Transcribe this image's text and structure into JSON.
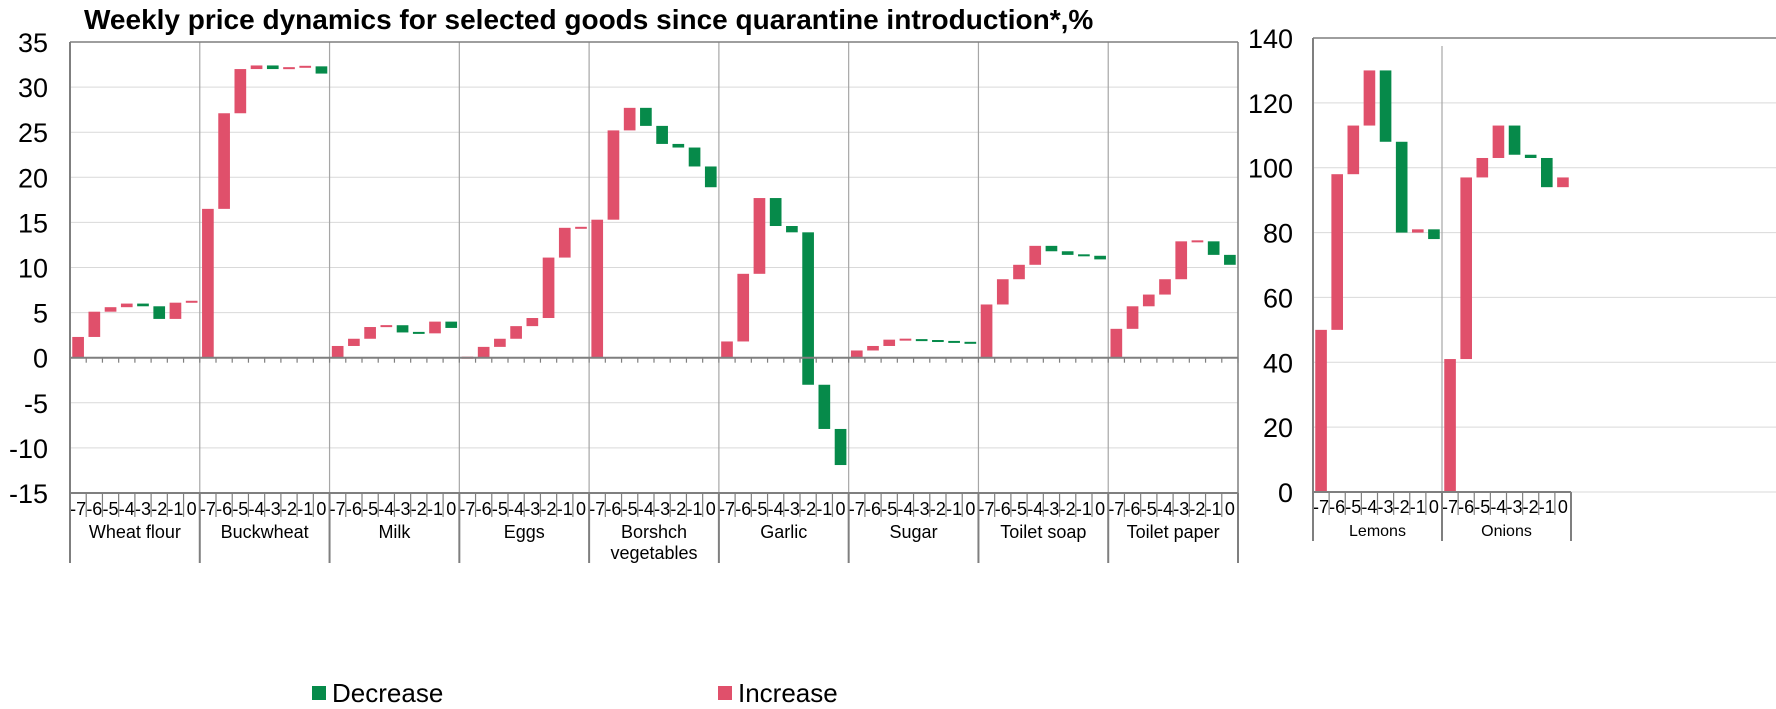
{
  "title": "Weekly price dynamics for selected goods since quarantine introduction*,%",
  "colors": {
    "decrease": "#068a4a",
    "increase": "#e0506b",
    "grid": "#d9d9d9",
    "axis": "#7f7f7f",
    "separator": "#a6a6a6"
  },
  "legend": [
    {
      "name": "Decrease",
      "color": "#068a4a"
    },
    {
      "name": "Increase",
      "color": "#e0506b"
    }
  ],
  "chart_data": [
    {
      "type": "bar",
      "subtype": "waterfall",
      "ylim": [
        -15,
        35
      ],
      "yticks": [
        "35",
        "30",
        "25",
        "20",
        "15",
        "10",
        "5",
        "0",
        "-5",
        "-10",
        "-15"
      ],
      "week_labels": [
        "-7",
        "-6",
        "-5",
        "-4",
        "-3",
        "-2",
        "-1",
        "0"
      ],
      "grid": true,
      "legend_position": "bottom",
      "groups": [
        {
          "name": "Wheat flour",
          "values": [
            2.3,
            5.1,
            5.6,
            6.0,
            5.7,
            4.3,
            6.1,
            6.3
          ]
        },
        {
          "name": "Buckwheat",
          "values": [
            16.5,
            27.1,
            32.0,
            32.4,
            32.0,
            32.2,
            32.3,
            31.5
          ]
        },
        {
          "name": "Milk",
          "values": [
            1.3,
            2.1,
            3.4,
            3.6,
            2.8,
            2.7,
            4.0,
            3.3
          ]
        },
        {
          "name": "Eggs",
          "values": [
            0.0,
            1.2,
            2.1,
            3.5,
            4.4,
            11.1,
            14.4,
            14.4
          ]
        },
        {
          "name": "Borshch vegetables",
          "values": [
            15.3,
            25.2,
            27.7,
            25.7,
            23.7,
            23.3,
            21.2,
            18.9
          ]
        },
        {
          "name": "Garlic",
          "values": [
            1.8,
            9.3,
            17.7,
            14.6,
            13.9,
            -3.0,
            -7.9,
            -11.9
          ]
        },
        {
          "name": "Sugar",
          "values": [
            0.8,
            1.3,
            2.0,
            2.0,
            1.9,
            1.8,
            1.7,
            1.6
          ]
        },
        {
          "name": "Toilet soap",
          "values": [
            5.9,
            8.7,
            10.3,
            12.4,
            11.8,
            11.4,
            11.3,
            10.9
          ]
        },
        {
          "name": "Toilet paper",
          "values": [
            3.2,
            5.7,
            7.0,
            8.7,
            12.9,
            12.9,
            11.4,
            10.3
          ]
        }
      ]
    },
    {
      "type": "bar",
      "subtype": "waterfall",
      "ylim": [
        0,
        140
      ],
      "yticks": [
        "140",
        "120",
        "100",
        "80",
        "60",
        "40",
        "20",
        "0"
      ],
      "week_labels": [
        "-7",
        "-6",
        "-5",
        "-4",
        "-3",
        "-2",
        "-1",
        "0"
      ],
      "grid": true,
      "groups": [
        {
          "name": "Lemons",
          "values": [
            50,
            98,
            113,
            130,
            108,
            80,
            81,
            78
          ]
        },
        {
          "name": "Onions",
          "values": [
            41,
            97,
            103,
            113,
            104,
            103,
            94,
            97
          ]
        }
      ]
    }
  ]
}
